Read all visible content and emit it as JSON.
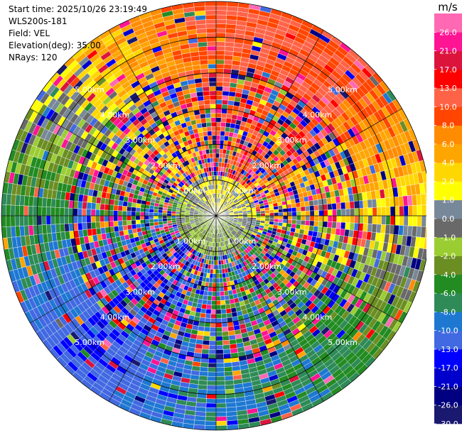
{
  "header": {
    "start_time": "Start time: 2025/10/26 23:19:49",
    "instrument": "WLS200s-181",
    "field": "Field: VEL",
    "elevation": "Elevation(deg): 35.00",
    "nrays": "NRays: 120"
  },
  "chart_data": {
    "type": "heatmap",
    "projection": "polar PPI",
    "field": "VEL",
    "elevation_deg": 35.0,
    "n_rays": 120,
    "max_range_km": 6.0,
    "range_rings": [
      {
        "range_km": 1.0,
        "label": "1.00km"
      },
      {
        "range_km": 2.0,
        "label": "2.00km"
      },
      {
        "range_km": 3.0,
        "label": "3.00km"
      },
      {
        "range_km": 4.0,
        "label": "4.00km"
      },
      {
        "range_km": 5.0,
        "label": "5.00km"
      }
    ],
    "colorbar": {
      "unit": "m/s",
      "levels": [
        -30.0,
        -26.0,
        -21.0,
        -17.0,
        -13.0,
        -10.0,
        -8.0,
        -6.0,
        -4.0,
        -2.0,
        -1.0,
        0.0,
        1.0,
        2.0,
        4.0,
        6.0,
        8.0,
        10.0,
        13.0,
        17.0,
        21.0,
        26.0,
        30.0
      ],
      "tick_labels": [
        "-30.0",
        "-26.0",
        "-21.0",
        "-17.0",
        "-13.0",
        "-10.0",
        "-8.0",
        "-6.0",
        "-4.0",
        "-2.0",
        "-1.0",
        "0.0",
        "1.0",
        "2.0",
        "4.0",
        "6.0",
        "8.0",
        "10.0",
        "13.0",
        "17.0",
        "21.0",
        "26.0"
      ],
      "colors": [
        "#191970",
        "#000080",
        "#0000cd",
        "#0000ff",
        "#4169e1",
        "#1e78d2",
        "#2e8b57",
        "#228b22",
        "#6b8e23",
        "#9acd32",
        "#696969",
        "#778899",
        "#ffff00",
        "#ffd700",
        "#ffa500",
        "#ff8c00",
        "#ff4500",
        "#ff6347",
        "#ff0000",
        "#dc143c",
        "#ff1493",
        "#ff69b4"
      ]
    },
    "approx_dominant_velocity_by_sector": [
      {
        "sector": "north",
        "value": 10.0
      },
      {
        "sector": "northeast",
        "value": 10.0
      },
      {
        "sector": "east",
        "value": 2.0
      },
      {
        "sector": "southeast",
        "value": -6.0
      },
      {
        "sector": "south",
        "value": -8.0
      },
      {
        "sector": "southwest",
        "value": -13.0
      },
      {
        "sector": "west",
        "value": -6.0
      },
      {
        "sector": "northwest",
        "value": 2.0
      }
    ]
  }
}
